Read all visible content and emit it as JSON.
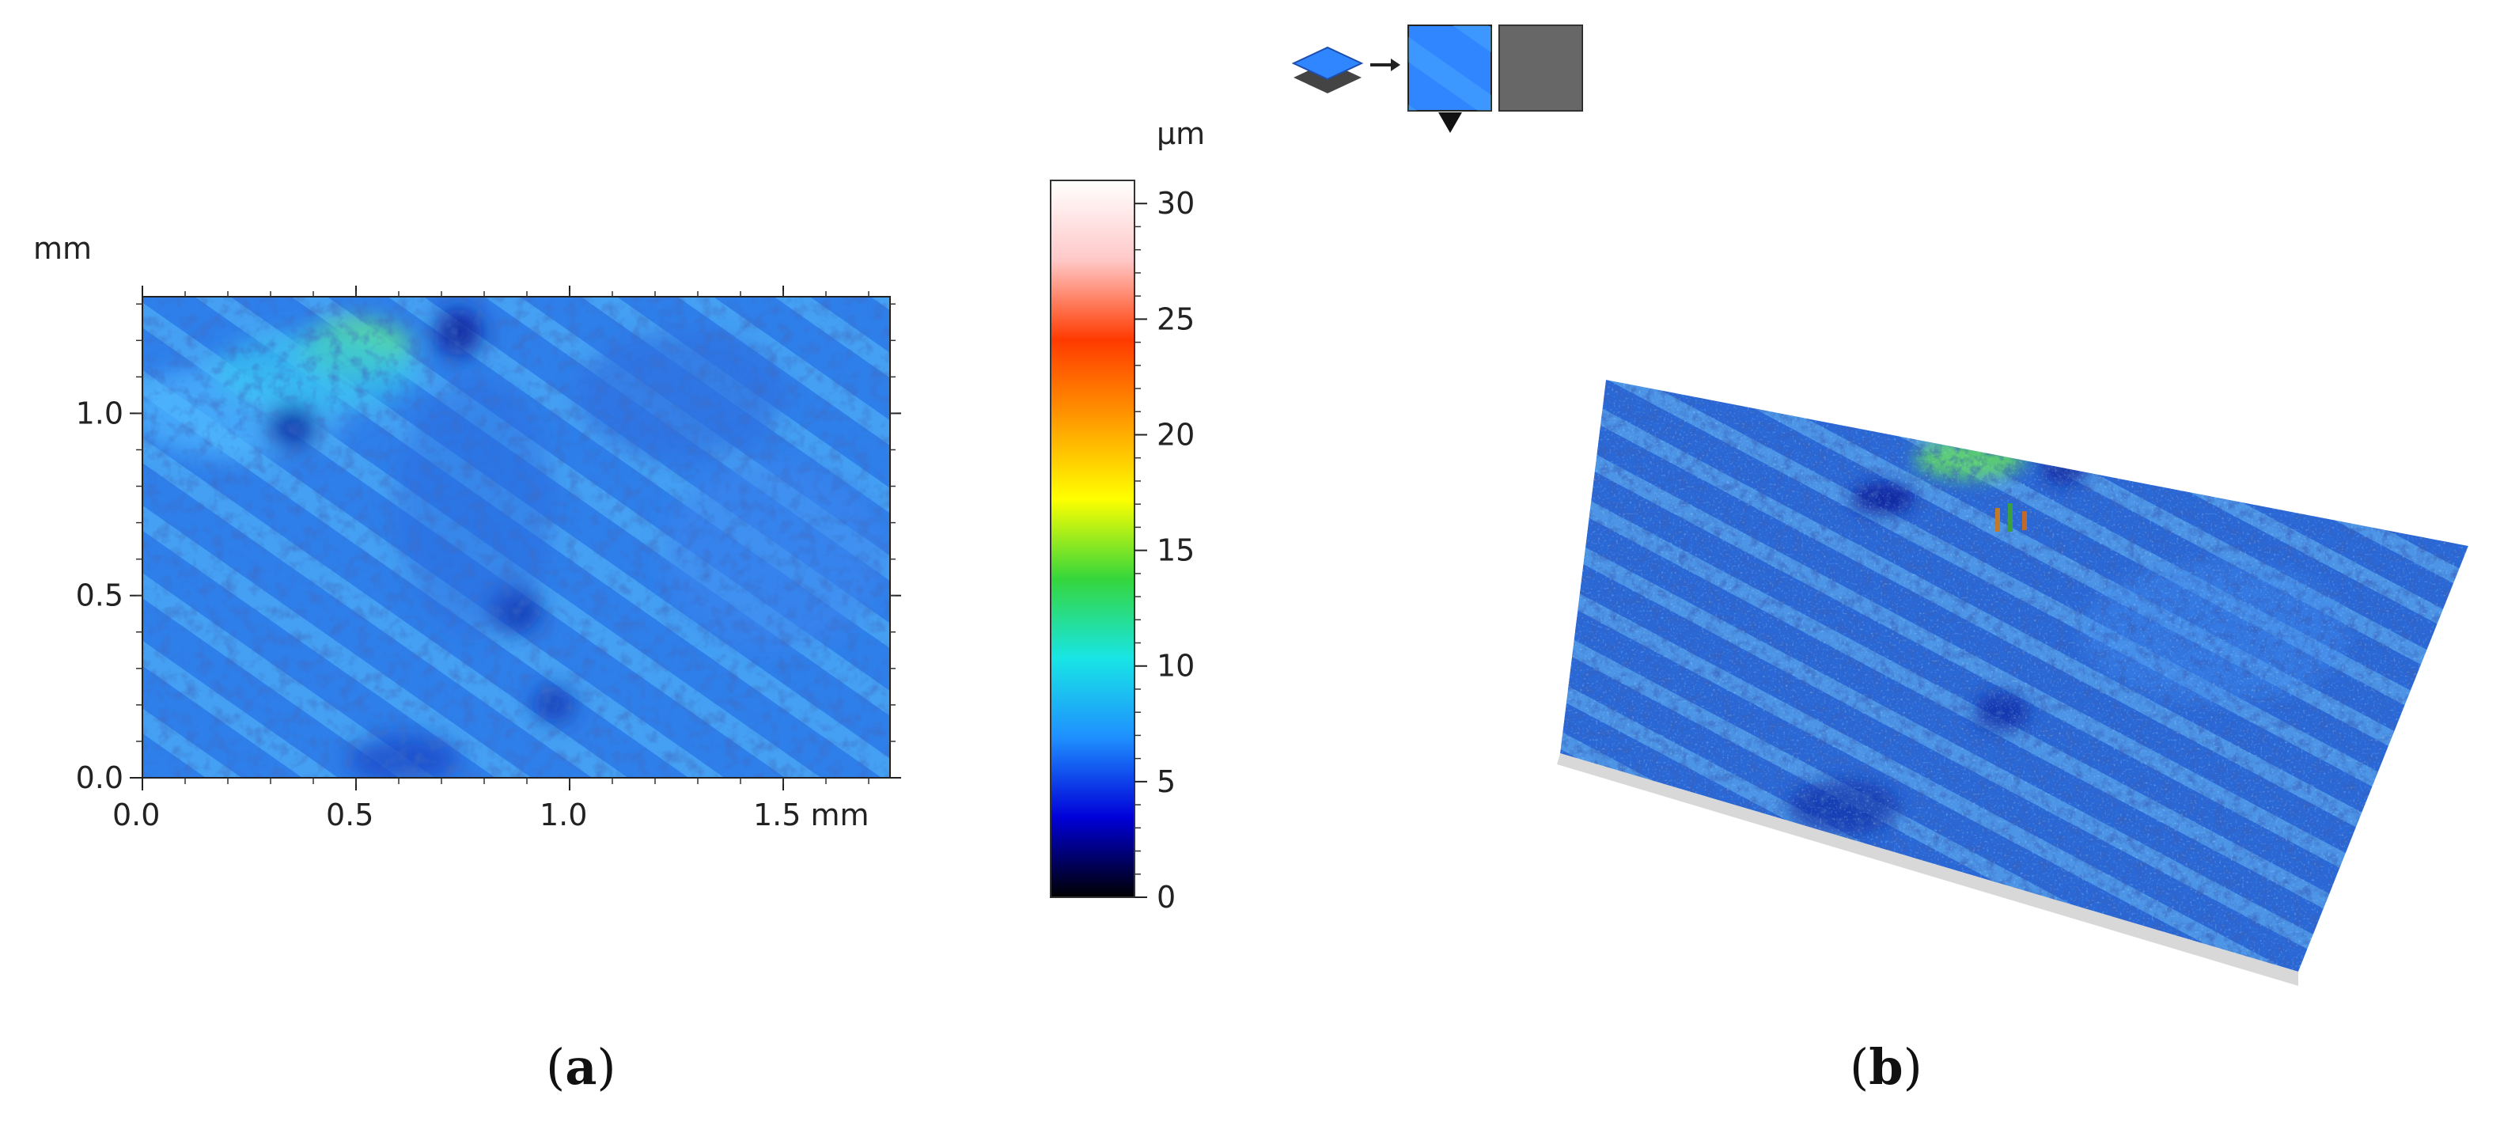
{
  "chart_data": [
    {
      "panel": "a",
      "type": "heatmap",
      "title": "",
      "xlabel": "",
      "ylabel": "",
      "y_unit": "mm",
      "xlim": [
        0,
        1.75
      ],
      "ylim": [
        0,
        1.32
      ],
      "x_ticks": [
        "0.0",
        "0.5",
        "1.0",
        "1.5 mm"
      ],
      "x_tick_values": [
        0,
        0.5,
        1.0,
        1.5
      ],
      "y_ticks": [
        "0.0",
        "0.5",
        "1.0"
      ],
      "y_tick_values": [
        0,
        0.5,
        1.0
      ],
      "colorbar": {
        "unit": "µm",
        "range": [
          0,
          31
        ],
        "ticks": [
          "0",
          "5",
          "10",
          "15",
          "20",
          "25",
          "30"
        ],
        "tick_values": [
          0,
          5,
          10,
          15,
          20,
          25,
          30
        ],
        "colors": [
          "#000000",
          "#0000d8",
          "#1f8fff",
          "#18e5e5",
          "#35d63b",
          "#ffff00",
          "#ff9a00",
          "#ff3a00",
          "#ffc8c8",
          "#ffffff"
        ]
      },
      "grid": false
    },
    {
      "panel": "b",
      "type": "surface-3d",
      "title": "",
      "colorbar_unit": "µm"
    }
  ],
  "toolbar": {
    "icons": [
      "layers-icon",
      "arrow-icon",
      "color-map-icon",
      "gray-map-icon",
      "dropdown-triangle-icon"
    ]
  },
  "labels": {
    "a": {
      "open": "(",
      "letter": "a",
      "close": ")"
    },
    "b": {
      "open": "(",
      "letter": "b",
      "close": ")"
    }
  }
}
